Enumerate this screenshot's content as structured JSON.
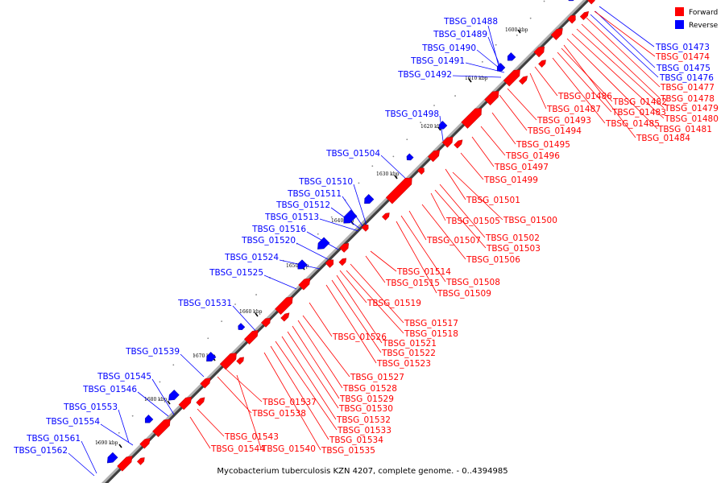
{
  "title": "Mycobacterium tuberculosis KZN 4207, complete genome. - 0..4394985",
  "legend": [
    {
      "label": "Forward",
      "color": "#ff0000"
    },
    {
      "label": "Reverse",
      "color": "#0000ff"
    }
  ],
  "colors": {
    "forward": "#ff0000",
    "reverse": "#0000ff",
    "backbone": "#808080"
  },
  "ticks": [
    "1600 kbp",
    "1610 kbp",
    "1620 kbp",
    "1630 kbp",
    "1640 kbp",
    "1650 kbp",
    "1660 kbp",
    "1670 kbp",
    "1680 kbp",
    "1690 kbp"
  ],
  "reverse_labels": [
    "TBSG_01473",
    "TBSG_01475",
    "TBSG_01476",
    "TBSG_01488",
    "TBSG_01489",
    "TBSG_01490",
    "TBSG_01491",
    "TBSG_01492",
    "TBSG_01498",
    "TBSG_01504",
    "TBSG_01510",
    "TBSG_01511",
    "TBSG_01512",
    "TBSG_01513",
    "TBSG_01516",
    "TBSG_01520",
    "TBSG_01524",
    "TBSG_01525",
    "TBSG_01531",
    "TBSG_01539",
    "TBSG_01545",
    "TBSG_01546",
    "TBSG_01553",
    "TBSG_01554",
    "TBSG_01561",
    "TBSG_01562"
  ],
  "forward_labels": [
    "TBSG_01474",
    "TBSG_01477",
    "TBSG_01478",
    "TBSG_01479",
    "TBSG_01480",
    "TBSG_01481",
    "TBSG_01482",
    "TBSG_01483",
    "TBSG_01484",
    "TBSG_01485",
    "TBSG_01486",
    "TBSG_01487",
    "TBSG_01493",
    "TBSG_01494",
    "TBSG_01495",
    "TBSG_01496",
    "TBSG_01497",
    "TBSG_01499",
    "TBSG_01500",
    "TBSG_01501",
    "TBSG_01502",
    "TBSG_01503",
    "TBSG_01505",
    "TBSG_01506",
    "TBSG_01507",
    "TBSG_01508",
    "TBSG_01509",
    "TBSG_01514",
    "TBSG_01515",
    "TBSG_01517",
    "TBSG_01518",
    "TBSG_01519",
    "TBSG_01521",
    "TBSG_01522",
    "TBSG_01523",
    "TBSG_01526",
    "TBSG_01527",
    "TBSG_01528",
    "TBSG_01529",
    "TBSG_01530",
    "TBSG_01532",
    "TBSG_01533",
    "TBSG_01534",
    "TBSG_01535",
    "TBSG_01537",
    "TBSG_01538",
    "TBSG_01540",
    "TBSG_01543",
    "TBSG_01544"
  ]
}
